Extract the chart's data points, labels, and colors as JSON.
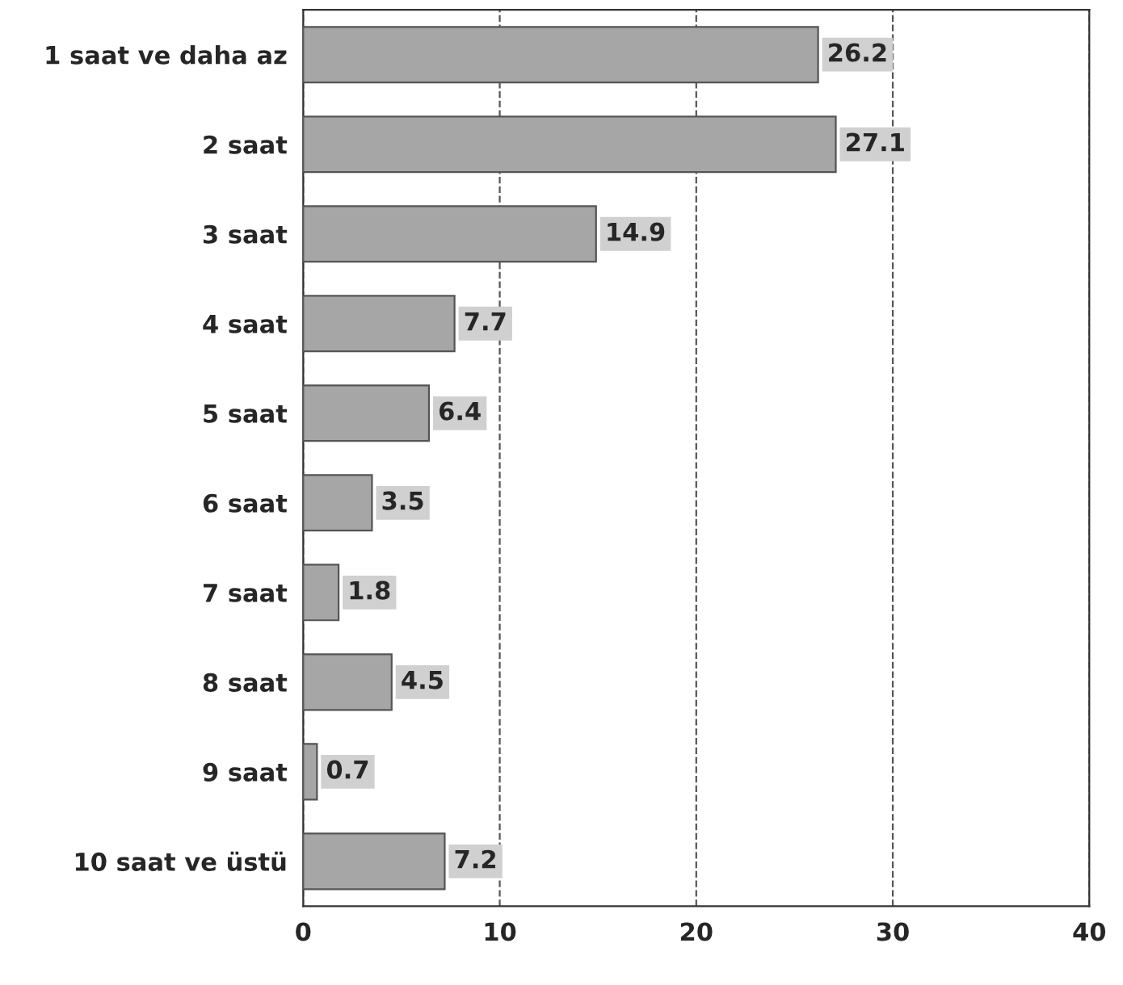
{
  "chart_data": {
    "type": "bar",
    "orientation": "horizontal",
    "categories": [
      "1 saat ve daha az",
      "2 saat",
      "3 saat",
      "4 saat",
      "5 saat",
      "6 saat",
      "7 saat",
      "8 saat",
      "9 saat",
      "10 saat ve üstü"
    ],
    "values": [
      26.2,
      27.1,
      14.9,
      7.7,
      6.4,
      3.5,
      1.8,
      4.5,
      0.7,
      7.2
    ],
    "color": "#a6a6a6",
    "xlim": [
      0,
      40
    ],
    "xticks": [
      0,
      10,
      20,
      30,
      40
    ],
    "grid": "x",
    "data_labels": true
  }
}
